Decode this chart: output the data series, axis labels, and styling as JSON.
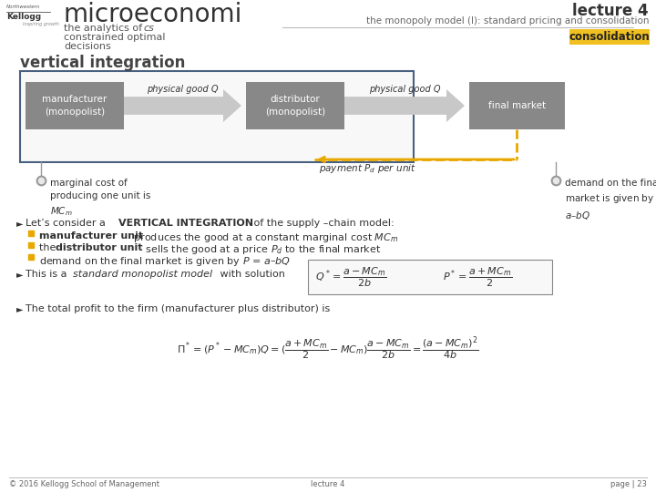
{
  "bg_color": "#ffffff",
  "header_left_title": "microeconomi",
  "header_left_sub1": "the analytics of",
  "header_left_sub2": "cs",
  "header_left_sub3": "constrained optimal",
  "header_left_sub4": "decisions",
  "header_right_top": "lecture 4",
  "header_right_sub": "the monopoly model (I): standard pricing and consolidation",
  "header_tag": "consolidation",
  "header_tag_color": "#f0c020",
  "section_title": "vertical integration",
  "box1_label": "manufacturer\n(monopolist)",
  "box2_label": "distributor\n(monopolist)",
  "box3_label": "final market",
  "box_color": "#888888",
  "box_text_color": "#ffffff",
  "arrow_label1": "physical good Q",
  "arrow_label2": "physical good Q",
  "payment_label": "payment $P_d$ per unit",
  "payment_arrow_color": "#e8a800",
  "outer_box_color": "#4a6080",
  "bullet_color": "#999999",
  "bullet_color2": "#e8a800",
  "footer_left": "© 2016 Kellogg School of Management",
  "footer_center": "lecture 4",
  "footer_right": "page | 23",
  "line_color": "#bbbbbb"
}
